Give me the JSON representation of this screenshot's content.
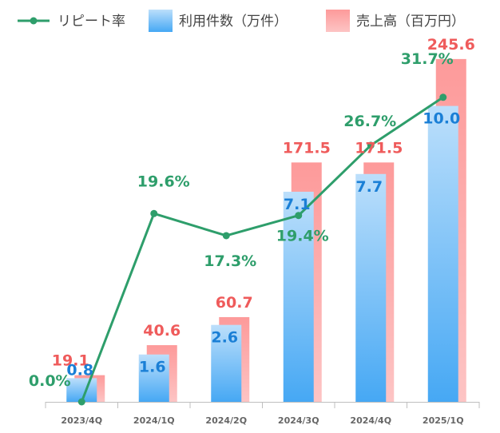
{
  "chart_data": {
    "type": "bar",
    "categories": [
      "2023/4Q",
      "2024/1Q",
      "2024/2Q",
      "2024/3Q",
      "2024/4Q",
      "2025/1Q"
    ],
    "series": [
      {
        "name": "利用件数（万件）",
        "type": "bar",
        "axis": "count",
        "values": [
          0.8,
          1.6,
          2.6,
          7.1,
          7.7,
          10.0
        ],
        "labels": [
          "0.8",
          "1.6",
          "2.6",
          "7.1",
          "7.7",
          "10.0"
        ],
        "color": "#4aaaf5",
        "label_color": "#1a7fd6"
      },
      {
        "name": "売上高（百万円）",
        "type": "bar",
        "axis": "sales",
        "values": [
          19.1,
          40.6,
          60.7,
          171.5,
          171.5,
          245.6
        ],
        "labels": [
          "19.1",
          "40.6",
          "60.7",
          "171.5",
          "171.5",
          "245.6"
        ],
        "color": "#fc9c9c",
        "label_color": "#ef5b5b"
      },
      {
        "name": "リピート率",
        "type": "line",
        "axis": "rate",
        "values": [
          0.0,
          19.6,
          17.3,
          19.4,
          26.7,
          31.7
        ],
        "labels": [
          "0.0%",
          "19.6%",
          "17.3%",
          "19.4%",
          "26.7%",
          "31.7%"
        ],
        "color": "#2e9e6b",
        "label_color": "#2e9e6b"
      }
    ],
    "axes": {
      "count": {
        "min": 0,
        "max": 12.5
      },
      "sales": {
        "min": 0,
        "max": 265
      },
      "rate": {
        "min": 0,
        "max": 38.5
      }
    },
    "legend_position": "top",
    "grid": false
  }
}
